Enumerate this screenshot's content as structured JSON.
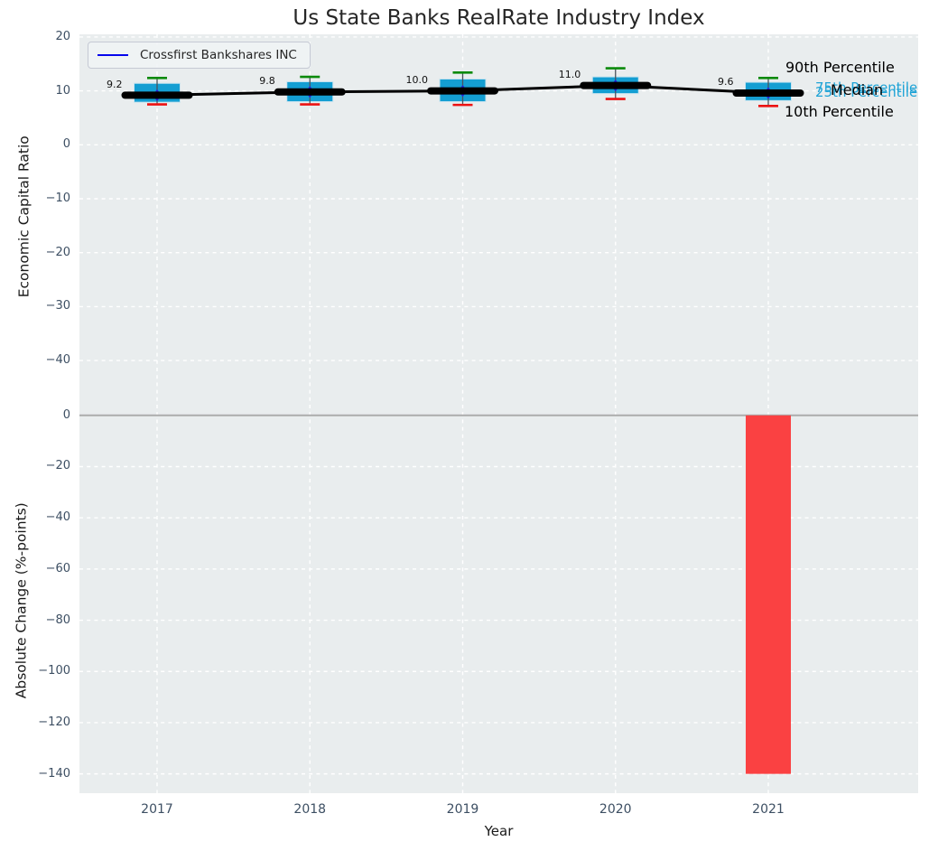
{
  "figure": {
    "title": "Us State Banks RealRate Industry Index"
  },
  "legend": {
    "label": "Crossfirst Bankshares INC",
    "line_color": "#0505ec"
  },
  "annotations": [
    {
      "id": "p90",
      "text": "90th Percentile",
      "color": "#000000"
    },
    {
      "id": "p75",
      "text": "75th Percentile",
      "color": "#1ea3d6"
    },
    {
      "id": "p25",
      "text": "25th Percentile",
      "color": "#1ea3d6"
    },
    {
      "id": "median",
      "text": "Median",
      "color": "#000000"
    },
    {
      "id": "p10",
      "text": "10th Percentile",
      "color": "#000000"
    }
  ],
  "colors": {
    "axes_bg": "#e9edee",
    "grid": "#ffffff",
    "box_fill": "#149ed2",
    "box_edge": "#c9e4ef",
    "cap_green": "#0b8a0b",
    "cap_red": "#ec1212",
    "whisker": "#49525c",
    "median_line": "#000000",
    "company_marker": "#2121dc",
    "bar_red": "#fa4142",
    "zero_line": "#acacac",
    "tick_color": "#3d4f63",
    "annotation_cyan": "#1ea3d6"
  },
  "chart_data": [
    {
      "type": "box",
      "title": "Us State Banks RealRate Industry Index",
      "ylabel": "Economic Capital Ratio",
      "categories": [
        "2017",
        "2018",
        "2019",
        "2020",
        "2021"
      ],
      "median_series": {
        "name": "Median",
        "values": [
          9.2,
          9.8,
          10.0,
          11.0,
          9.6
        ],
        "labels": [
          "9.2",
          "9.8",
          "10.0",
          "11.0",
          "9.6"
        ]
      },
      "company_series": {
        "name": "Crossfirst Bankshares INC",
        "marker": "diamond",
        "values": [
          9.2,
          9.8,
          10.0,
          11.0,
          9.6
        ]
      },
      "boxes": [
        {
          "year": "2017",
          "p90": 12.4,
          "q75": 11.4,
          "median": 9.2,
          "q25": 7.9,
          "p10": 7.5
        },
        {
          "year": "2018",
          "p90": 12.6,
          "q75": 11.7,
          "median": 9.8,
          "q25": 8.0,
          "p10": 7.5
        },
        {
          "year": "2019",
          "p90": 13.4,
          "q75": 12.2,
          "median": 10.0,
          "q25": 8.0,
          "p10": 7.4
        },
        {
          "year": "2020",
          "p90": 14.2,
          "q75": 12.6,
          "median": 11.0,
          "q25": 9.5,
          "p10": 8.5
        },
        {
          "year": "2021",
          "p90": 12.4,
          "q75": 11.6,
          "median": 9.6,
          "q25": 8.2,
          "p10": 7.2
        }
      ],
      "yticks": [
        {
          "value": 20,
          "label": "20"
        },
        {
          "value": 10,
          "label": "10"
        },
        {
          "value": 0,
          "label": "0"
        },
        {
          "value": -10,
          "label": "−10"
        },
        {
          "value": -20,
          "label": "−20"
        },
        {
          "value": -30,
          "label": "−30"
        },
        {
          "value": -40,
          "label": "−40"
        }
      ],
      "ylim": [
        -47.7,
        20.4
      ],
      "grid": true,
      "legend_position": "upper left"
    },
    {
      "type": "bar",
      "ylabel": "Absolute Change (%-points)",
      "xlabel": "Year",
      "categories": [
        "2017",
        "2018",
        "2019",
        "2020",
        "2021"
      ],
      "values": [
        0,
        0,
        0,
        0,
        -140
      ],
      "yticks": [
        {
          "value": 0,
          "label": "0"
        },
        {
          "value": -20,
          "label": "−20"
        },
        {
          "value": -40,
          "label": "−40"
        },
        {
          "value": -60,
          "label": "−60"
        },
        {
          "value": -80,
          "label": "−80"
        },
        {
          "value": -100,
          "label": "−100"
        },
        {
          "value": -120,
          "label": "−120"
        },
        {
          "value": -140,
          "label": "−140"
        }
      ],
      "ylim": [
        -147.4,
        5.3
      ],
      "grid": true
    }
  ]
}
